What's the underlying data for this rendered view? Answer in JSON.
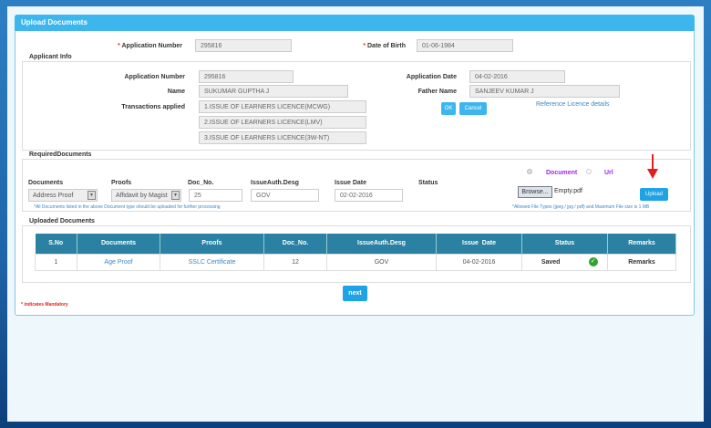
{
  "panel": {
    "title": "Upload Documents"
  },
  "top": {
    "app_no_label": "Application Number",
    "app_no": "295816",
    "dob_label": "Date of Birth",
    "dob": "01-06-1984",
    "required_marker": "*"
  },
  "applicant": {
    "legend": "Applicant Info",
    "app_no_label": "Application Number",
    "app_no": "295816",
    "app_date_label": "Application Date",
    "app_date": "04-02-2016",
    "name_label": "Name",
    "name": "SUKUMAR GUPTHA J",
    "father_label": "Father Name",
    "father": "SANJEEV KUMAR J",
    "trans_label": "Transactions applied",
    "transactions": [
      "1.ISSUE OF LEARNERS LICENCE(MCWG)",
      "2.ISSUE OF LEARNERS LICENCE(LMV)",
      "3.ISSUE OF LEARNERS LICENCE(3W-NT)"
    ],
    "ok": "OK",
    "cancel": "Cancel",
    "reference_link": "Reference Licence details"
  },
  "required": {
    "legend": "RequiredDocuments",
    "documents_label": "Documents",
    "documents_value": "Address Proof",
    "proofs_label": "Proofs",
    "proofs_value": "Affidavit by Magist",
    "docno_label": "Doc_No.",
    "docno_value": "25",
    "auth_label": "IssueAuth.Desg",
    "auth_value": "GOV",
    "date_label": "Issue Date",
    "date_value": "02-02-2016",
    "status_label": "Status",
    "note": "*All Documents listed in the above Document type should be uploaded for further processing",
    "radio_document": "Document",
    "radio_url": "Url",
    "browse": "Browse...",
    "file_name": "Empty.pdf",
    "upload": "Upload",
    "file_note": "*Allowed File Types (jpeg / jpg / pdf) and Maximum File size is 1 MB",
    "arrow_color": "#e02020"
  },
  "uploaded": {
    "legend": "Uploaded Documents",
    "headers": [
      "S.No",
      "Documents",
      "Proofs",
      "Doc_No.",
      "IssueAuth.Desg",
      "Issue  Date",
      "Status",
      "Remarks"
    ],
    "rows": [
      {
        "sno": "1",
        "document": "Age Proof",
        "proof": "SSLC Certificate",
        "docno": "12",
        "auth": "GOV",
        "date": "04-02-2016",
        "status": "Saved",
        "status_icon": "check-circle",
        "remarks": "Remarks"
      }
    ]
  },
  "next": "next",
  "mandatory_note": "* indicates Mandatory"
}
